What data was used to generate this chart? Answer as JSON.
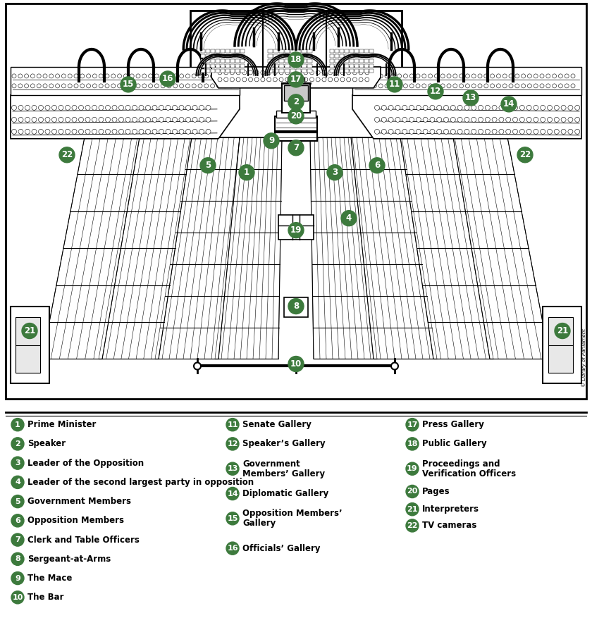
{
  "fig_width": 8.4,
  "fig_height": 8.77,
  "dpi": 100,
  "background_color": "#ffffff",
  "circle_color": "#3d7a3d",
  "circle_text_color": "#ffffff",
  "label_text_color": "#000000",
  "legend_col1": {
    "items": [
      {
        "num": "1",
        "text": "Prime Minister"
      },
      {
        "num": "2",
        "text": "Speaker"
      },
      {
        "num": "3",
        "text": "Leader of the Opposition"
      },
      {
        "num": "4",
        "text": "Leader of the second largest party in opposition"
      },
      {
        "num": "5",
        "text": "Government Members"
      },
      {
        "num": "6",
        "text": "Opposition Members"
      },
      {
        "num": "7",
        "text": "Clerk and Table Officers"
      },
      {
        "num": "8",
        "text": "Sergeant-at-Arms"
      },
      {
        "num": "9",
        "text": "The Mace"
      },
      {
        "num": "10",
        "text": "The Bar"
      }
    ]
  },
  "legend_col2": {
    "items": [
      {
        "num": "11",
        "text": "Senate Gallery"
      },
      {
        "num": "12",
        "text": "Speaker’s Gallery"
      },
      {
        "num": "13",
        "text": "Government\nMembers’ Gallery"
      },
      {
        "num": "14",
        "text": "Diplomatic Gallery"
      },
      {
        "num": "15",
        "text": "Opposition Members’\nGallery"
      },
      {
        "num": "16",
        "text": "Officials’ Gallery"
      }
    ]
  },
  "legend_col3": {
    "items": [
      {
        "num": "17",
        "text": "Press Gallery"
      },
      {
        "num": "18",
        "text": "Public Gallery"
      },
      {
        "num": "19",
        "text": "Proceedings and\nVerification Officers"
      },
      {
        "num": "20",
        "text": "Pages"
      },
      {
        "num": "21",
        "text": "Interpreters"
      },
      {
        "num": "22",
        "text": "TV cameras"
      }
    ]
  }
}
